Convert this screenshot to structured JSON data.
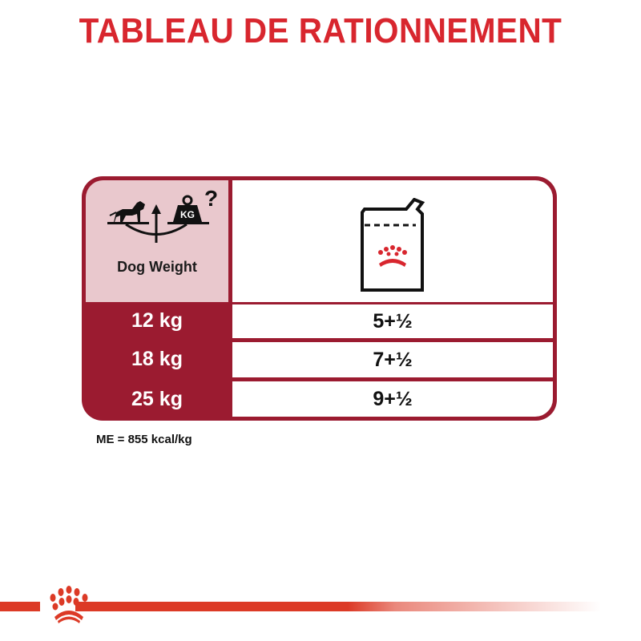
{
  "title": "TABLEAU DE RATIONNEMENT",
  "table": {
    "header": {
      "weight_label": "Dog Weight",
      "weight_icon": "dog-on-scale-icon",
      "weight_icon_text": "KG",
      "food_icon": "wet-food-pouch-icon"
    },
    "rows": [
      {
        "weight": "12 kg",
        "pouches": "5+½"
      },
      {
        "weight": "18 kg",
        "pouches": "7+½"
      },
      {
        "weight": "25 kg",
        "pouches": "9+½"
      }
    ]
  },
  "footnote": "ME = 855 kcal/kg",
  "brand_logo": "Royal Canin crown",
  "colors": {
    "title": "#d8262e",
    "table_dark": "#9b1b30",
    "header_pink": "#e9c8cd",
    "footer_bar": "#dc3a26"
  }
}
